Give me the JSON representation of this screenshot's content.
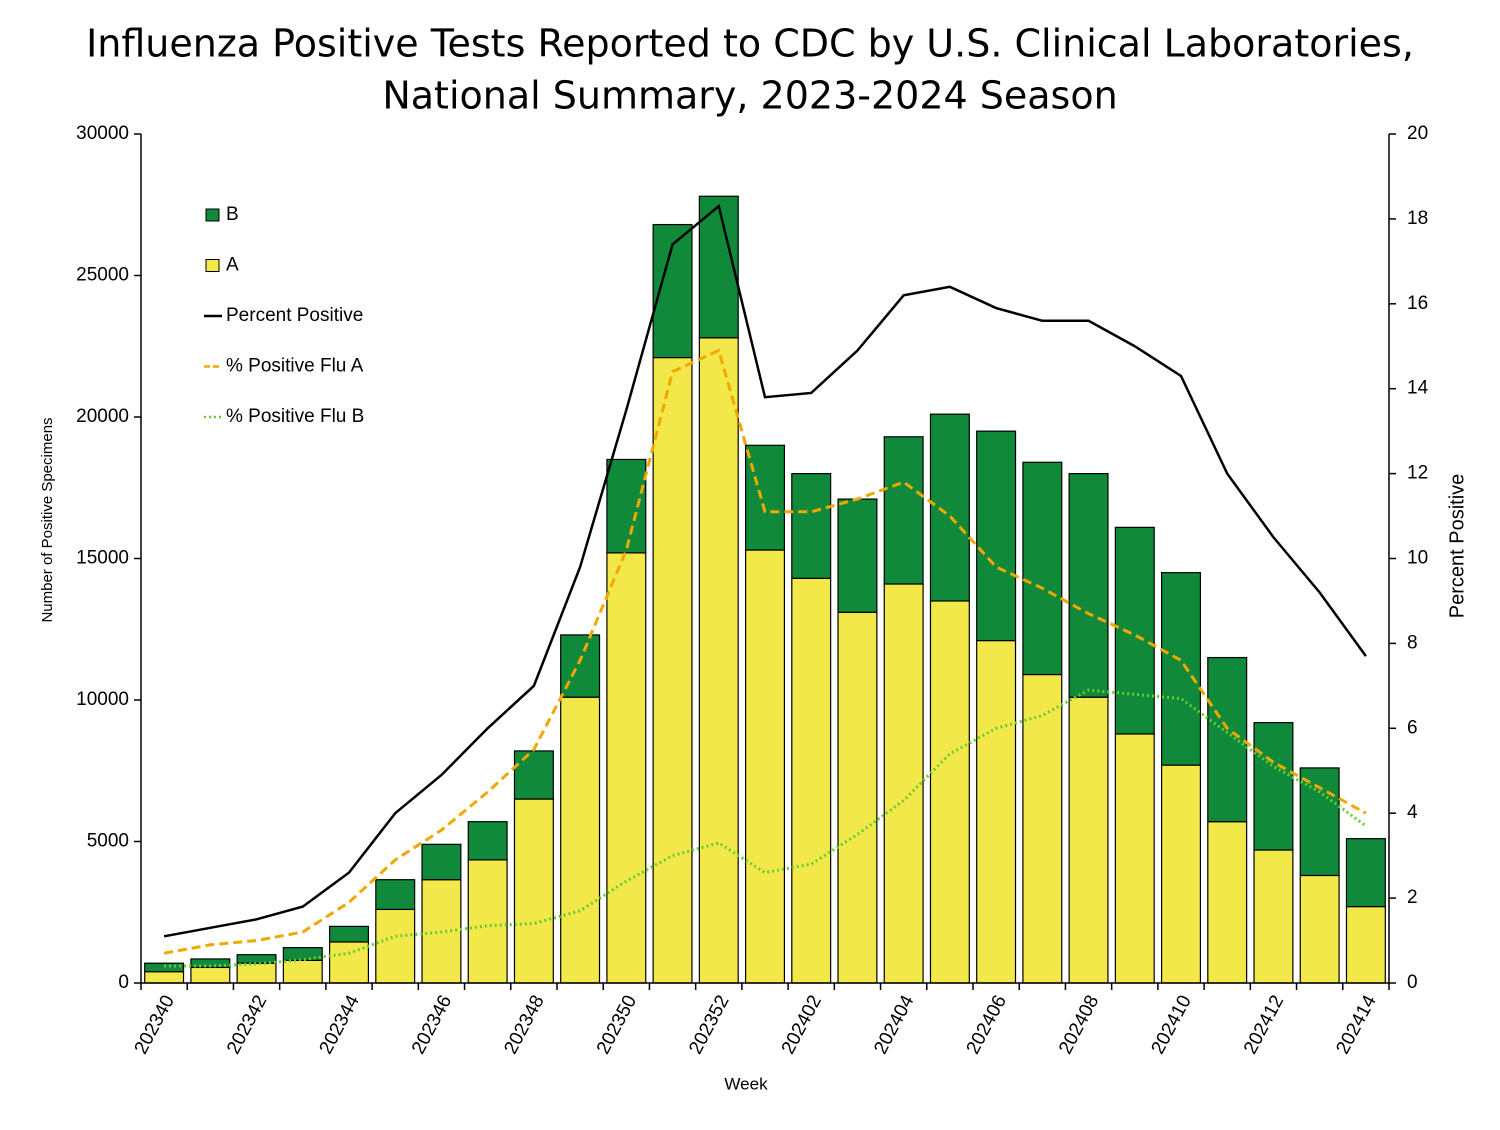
{
  "chart_data": {
    "type": "bar",
    "stacked": true,
    "title": [
      "Influenza Positive Tests Reported to CDC by U.S. Clinical Laboratories,",
      "National Summary, 2023-2024 Season"
    ],
    "x_label": "Week",
    "y_label": "Number of Positive Specimens",
    "y2_label": "Percent Positive",
    "categories": [
      "202340",
      null,
      "202342",
      null,
      "202344",
      null,
      "202346",
      null,
      "202348",
      null,
      "202350",
      null,
      "202352",
      null,
      "202402",
      null,
      "202404",
      null,
      "202406",
      null,
      "202408",
      null,
      "202410",
      null,
      "202412",
      null,
      "202414"
    ],
    "ylim": [
      0,
      30000
    ],
    "yticks": [
      0,
      5000,
      10000,
      15000,
      20000,
      25000,
      30000
    ],
    "y2lim": [
      0,
      20
    ],
    "y2ticks": [
      0,
      2,
      4,
      6,
      8,
      10,
      12,
      14,
      16,
      18,
      20
    ],
    "legend": "upper left",
    "series": [
      {
        "name": "A",
        "type": "bar",
        "color": "#f3e84a",
        "values": [
          400,
          550,
          700,
          800,
          1450,
          2600,
          3650,
          4350,
          6500,
          10100,
          15200,
          22100,
          22800,
          15300,
          14300,
          13100,
          14100,
          13500,
          12100,
          10900,
          10100,
          8800,
          7700,
          5700,
          4700,
          3800,
          2700
        ]
      },
      {
        "name": "B",
        "type": "bar",
        "color": "#108a3a",
        "values": [
          300,
          300,
          300,
          450,
          550,
          1050,
          1250,
          1350,
          1700,
          2200,
          3300,
          4700,
          5000,
          3700,
          3700,
          4000,
          5200,
          6600,
          7400,
          7500,
          7900,
          7300,
          6800,
          5800,
          4500,
          3800,
          2400
        ]
      },
      {
        "name": "Percent Positive",
        "type": "line",
        "axis": "y2",
        "style": "solid",
        "color": "#000000",
        "values": [
          1.1,
          1.3,
          1.5,
          1.8,
          2.6,
          4.0,
          4.9,
          6.0,
          7.0,
          9.8,
          13.5,
          17.4,
          18.3,
          13.8,
          13.9,
          14.9,
          16.2,
          16.4,
          15.9,
          15.6,
          15.6,
          15.0,
          14.3,
          12.0,
          10.5,
          9.2,
          7.7
        ]
      },
      {
        "name": "% Positive Flu A",
        "type": "line",
        "axis": "y2",
        "style": "dashed",
        "color": "#f0a800",
        "values": [
          0.7,
          0.9,
          1.0,
          1.2,
          1.9,
          2.9,
          3.6,
          4.5,
          5.5,
          7.6,
          10.2,
          14.4,
          14.9,
          11.1,
          11.1,
          11.4,
          11.8,
          11.0,
          9.8,
          9.3,
          8.7,
          8.2,
          7.6,
          6.0,
          5.2,
          4.6,
          4.0
        ]
      },
      {
        "name": "% Positive Flu B",
        "type": "line",
        "axis": "y2",
        "style": "dotted",
        "color": "#66cc33",
        "values": [
          0.4,
          0.4,
          0.45,
          0.55,
          0.7,
          1.1,
          1.2,
          1.35,
          1.4,
          1.7,
          2.4,
          3.0,
          3.3,
          2.6,
          2.8,
          3.5,
          4.3,
          5.4,
          6.0,
          6.3,
          6.9,
          6.8,
          6.7,
          5.9,
          5.1,
          4.5,
          3.7
        ]
      }
    ]
  }
}
